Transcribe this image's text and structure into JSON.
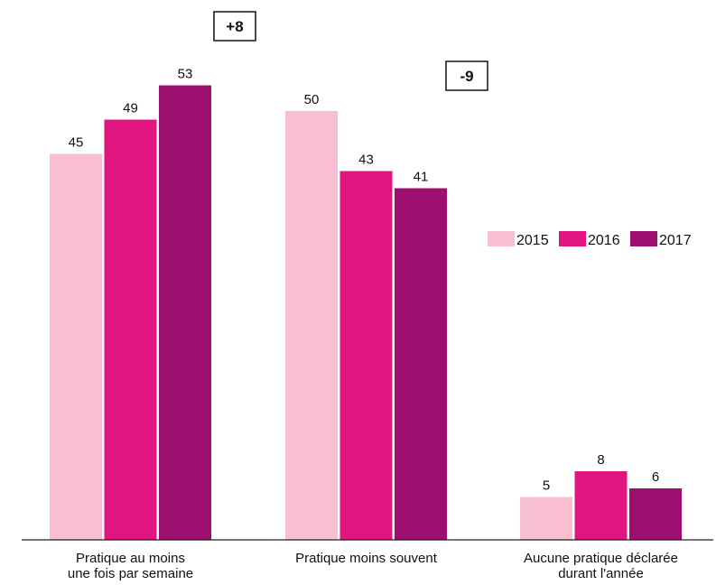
{
  "chart_data": {
    "type": "bar",
    "categories": [
      [
        "Pratique au moins",
        "une fois par semaine"
      ],
      [
        "Pratique moins souvent"
      ],
      [
        "Aucune pratique déclarée",
        "durant l'année"
      ]
    ],
    "series": [
      {
        "name": "2015",
        "color": "#f7bfd1",
        "values": [
          45,
          50,
          5
        ]
      },
      {
        "name": "2016",
        "color": "#e0157f",
        "values": [
          49,
          43,
          8
        ]
      },
      {
        "name": "2017",
        "color": "#9c0f6e",
        "values": [
          53,
          41,
          6
        ]
      }
    ],
    "title": "",
    "xlabel": "",
    "ylabel": "",
    "ylim": [
      0,
      60
    ],
    "grid": false,
    "legend": "right",
    "annotations": [
      {
        "text": "+8",
        "category_index": 0
      },
      {
        "text": "-9",
        "category_index": 1
      }
    ]
  }
}
